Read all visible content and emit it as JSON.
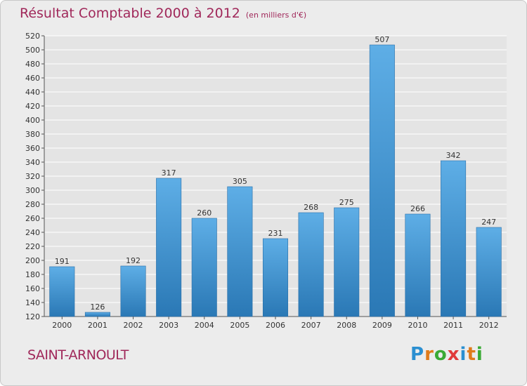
{
  "chart_data": {
    "type": "bar",
    "title": "Résultat Comptable 2000 à 2012",
    "subtitle": "(en milliers d'€)",
    "categories": [
      "2000",
      "2001",
      "2002",
      "2003",
      "2004",
      "2005",
      "2006",
      "2007",
      "2008",
      "2009",
      "2010",
      "2011",
      "2012"
    ],
    "values": [
      191,
      126,
      192,
      317,
      260,
      305,
      231,
      268,
      275,
      507,
      266,
      342,
      247
    ],
    "ylim": [
      120,
      520
    ],
    "ytick_step": 20,
    "xlabel": "",
    "ylabel": "",
    "grid": true,
    "colors": {
      "bar_top": "#5eaee6",
      "bar_bottom": "#2a78b5",
      "title": "#a0285a",
      "grid": "#ffffff",
      "text": "#333333"
    }
  },
  "location": "SAINT-ARNOULT",
  "logo": {
    "letters": [
      "P",
      "r",
      "o",
      "x",
      "i",
      "t",
      "i"
    ],
    "colors": [
      "#2b8fd1",
      "#e07b1a",
      "#3aaa35",
      "#e03a3a",
      "#2b8fd1",
      "#e07b1a",
      "#3aaa35"
    ]
  }
}
